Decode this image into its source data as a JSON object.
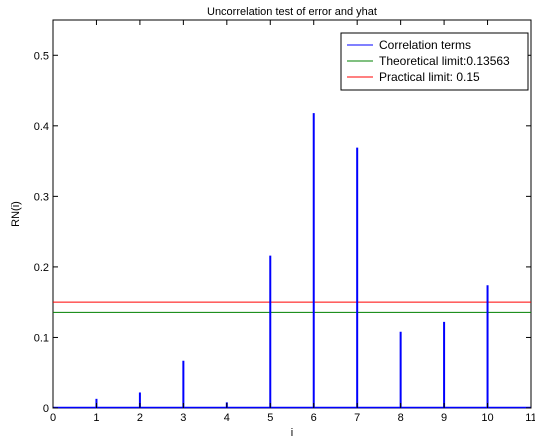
{
  "chart_data": {
    "type": "bar",
    "title": "Uncorrelation test of error and yhat",
    "xlabel": "i",
    "ylabel": "RN(i)",
    "xlim": [
      0,
      11
    ],
    "ylim": [
      0,
      0.55
    ],
    "xticks": [
      0,
      1,
      2,
      3,
      4,
      5,
      6,
      7,
      8,
      9,
      10,
      11
    ],
    "yticks": [
      0,
      0.1,
      0.2,
      0.3,
      0.4,
      0.5
    ],
    "x": [
      1,
      2,
      3,
      4,
      5,
      6,
      7,
      8,
      9,
      10
    ],
    "series": [
      {
        "name": "Correlation terms",
        "color": "#0000ff",
        "values": [
          0.013,
          0.022,
          0.067,
          0.008,
          0.216,
          0.418,
          0.369,
          0.108,
          0.122,
          0.174
        ]
      }
    ],
    "reference_lines": [
      {
        "name": "Theoretical limit:0.13563",
        "value": 0.13563,
        "color": "#008000"
      },
      {
        "name": "Practical limit: 0.15",
        "value": 0.15,
        "color": "#ff0000"
      }
    ],
    "legend_position": "top-right",
    "grid": false
  }
}
